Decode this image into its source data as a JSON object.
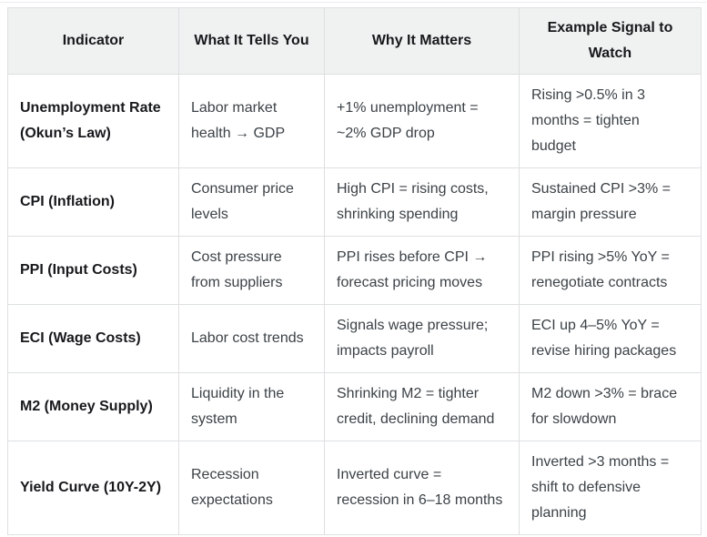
{
  "colors": {
    "header_background": "#f0f1f1",
    "cell_border": "#dde0e1",
    "heading_text": "#17191c",
    "body_text": "#3c4247"
  },
  "chart_data": {
    "type": "table",
    "columns": [
      "Indicator",
      "What It Tells You",
      "Why It Matters",
      "Example Signal to Watch"
    ],
    "rows": [
      [
        "Unemployment Rate\n(Okun’s Law)",
        "Labor market\nhealth → GDP",
        "+1% unemployment =\n~2% GDP drop",
        "Rising >0.5% in 3\nmonths = tighten\nbudget"
      ],
      [
        "CPI (Inflation)",
        "Consumer price\nlevels",
        "High CPI = rising costs,\nshrinking spending",
        "Sustained CPI >3% =\nmargin pressure"
      ],
      [
        "PPI (Input Costs)",
        "Cost pressure\nfrom suppliers",
        "PPI rises before CPI →\nforecast pricing moves",
        "PPI rising >5% YoY =\nrenegotiate contracts"
      ],
      [
        "ECI (Wage Costs)",
        "Labor cost trends",
        "Signals wage pressure;\nimpacts payroll",
        "ECI up 4–5% YoY =\nrevise hiring packages"
      ],
      [
        "M2 (Money Supply)",
        "Liquidity in the\nsystem",
        "Shrinking M2 = tighter\ncredit, declining demand",
        "M2 down >3% = brace\nfor slowdown"
      ],
      [
        "Yield Curve (10Y-2Y)",
        "Recession\nexpectations",
        "Inverted curve =\nrecession in 6–18 months",
        "Inverted >3 months =\nshift to defensive\nplanning"
      ]
    ]
  }
}
